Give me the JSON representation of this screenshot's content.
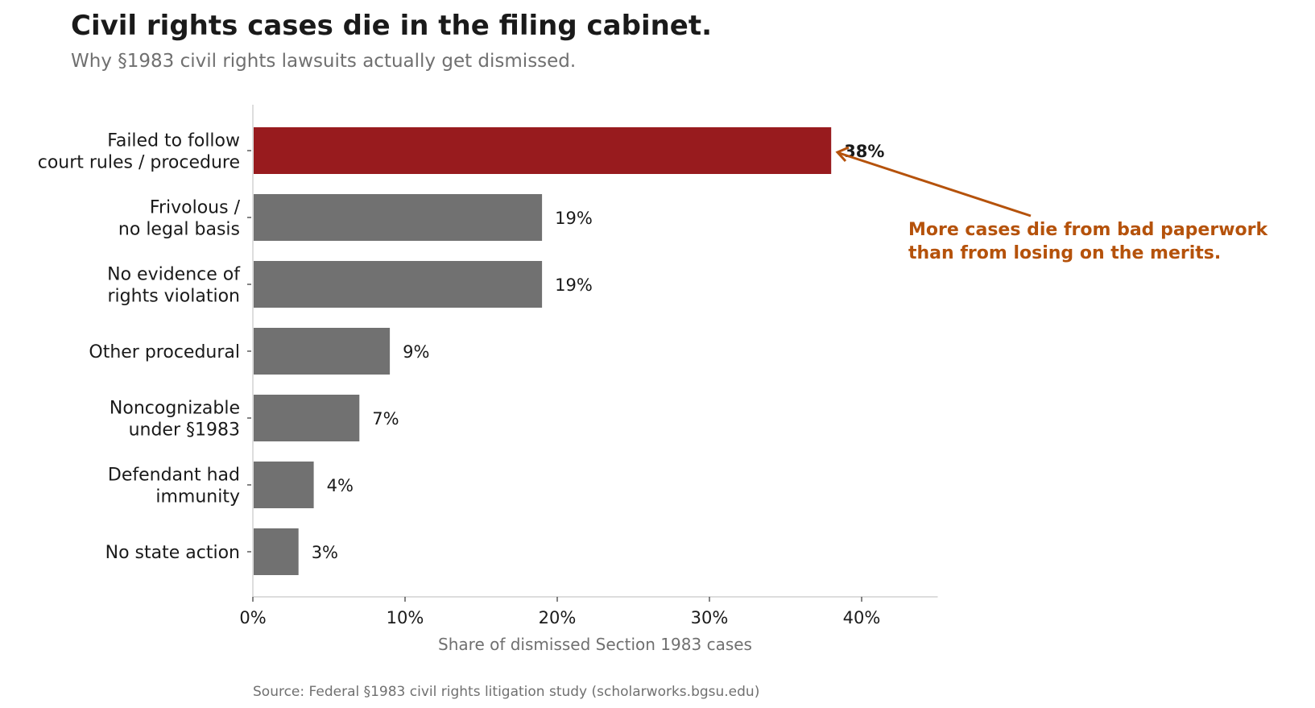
{
  "colors": {
    "highlight": "#981b1e",
    "bar": "#717171",
    "annotation": "#b5520b",
    "text": "#1a1a1a",
    "muted": "#707070",
    "axis": "#dddddd"
  },
  "chart_data": {
    "type": "bar",
    "orientation": "horizontal",
    "title": "Civil rights cases die in the filing cabinet.",
    "subtitle": "Why §1983 civil rights lawsuits actually get dismissed.",
    "xlabel": "Share of dismissed Section 1983 cases",
    "ylabel": "",
    "xlim": [
      0,
      45
    ],
    "xticks": [
      "0%",
      "10%",
      "20%",
      "30%",
      "40%"
    ],
    "xtick_values": [
      0,
      10,
      20,
      30,
      40
    ],
    "grid": false,
    "categories": [
      [
        "Failed to follow",
        "court rules / procedure"
      ],
      [
        "Frivolous /",
        "no legal basis"
      ],
      [
        "No evidence of",
        "rights violation"
      ],
      [
        "Other procedural"
      ],
      [
        "Noncognizable",
        "under §1983"
      ],
      [
        "Defendant had",
        "immunity"
      ],
      [
        "No state action"
      ]
    ],
    "values": [
      38,
      19,
      19,
      9,
      7,
      4,
      3
    ],
    "data_labels": [
      "38%",
      "19%",
      "19%",
      "9%",
      "7%",
      "4%",
      "3%"
    ],
    "highlight_index": 0,
    "annotation": {
      "lines": [
        "More cases die from bad paperwork",
        "than from losing on the merits."
      ],
      "points_to": 0
    },
    "source": "Source: Federal §1983 civil rights litigation study (scholarworks.bgsu.edu)"
  }
}
